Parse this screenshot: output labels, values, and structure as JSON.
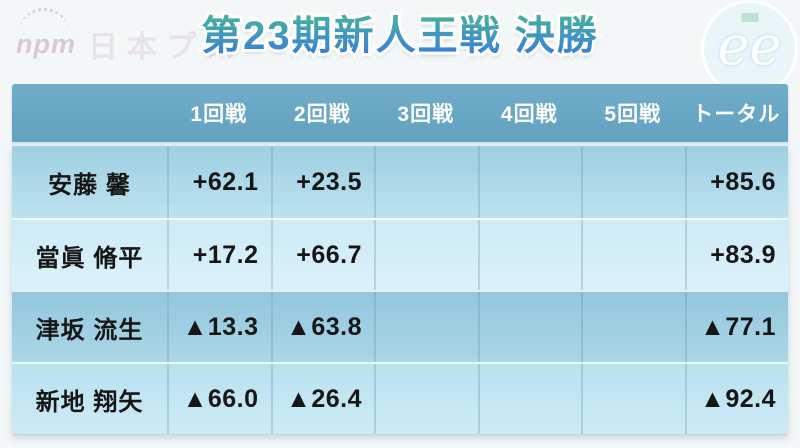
{
  "page": {
    "title": "第23期新人王戦 決勝"
  },
  "watermarks": {
    "npm_logo": "npm",
    "npm_text": "日本プロ",
    "ee_logo": "ee"
  },
  "colors": {
    "page_bg": "#f4f7f8",
    "title_gradient_top": "#47b892",
    "title_gradient_bottom": "#3377d8",
    "title_outline": "#ffffff",
    "table_header_bg": "#68a7c4",
    "table_header_text": "#ffffff",
    "row1_bg": "#a6d4e6",
    "row2_bg": "#d2edf8",
    "row3_bg": "#9ccce0",
    "row4_bg": "#c2e6f3",
    "value_text": "#161616"
  },
  "table": {
    "columns": [
      "1回戦",
      "2回戦",
      "3回戦",
      "4回戦",
      "5回戦",
      "トータル"
    ],
    "rows": [
      {
        "name": "安藤 馨",
        "scores": [
          "+62.1",
          "+23.5",
          "",
          "",
          ""
        ],
        "total": "+85.6"
      },
      {
        "name": "當眞 脩平",
        "scores": [
          "+17.2",
          "+66.7",
          "",
          "",
          ""
        ],
        "total": "+83.9"
      },
      {
        "name": "津坂 流生",
        "scores": [
          "▲13.3",
          "▲63.8",
          "",
          "",
          ""
        ],
        "total": "▲77.1"
      },
      {
        "name": "新地 翔矢",
        "scores": [
          "▲66.0",
          "▲26.4",
          "",
          "",
          ""
        ],
        "total": "▲92.4"
      }
    ]
  },
  "chart_data": {
    "type": "table",
    "title": "第23期新人王戦 決勝",
    "columns": [
      "",
      "1回戦",
      "2回戦",
      "3回戦",
      "4回戦",
      "5回戦",
      "トータル"
    ],
    "rows": [
      [
        "安藤 馨",
        "+62.1",
        "+23.5",
        "",
        "",
        "",
        "+85.6"
      ],
      [
        "當眞 脩平",
        "+17.2",
        "+66.7",
        "",
        "",
        "",
        "+83.9"
      ],
      [
        "津坂 流生",
        "▲13.3",
        "▲63.8",
        "",
        "",
        "",
        "▲77.1"
      ],
      [
        "新地 翔矢",
        "▲66.0",
        "▲26.4",
        "",
        "",
        "",
        "▲92.4"
      ]
    ]
  }
}
